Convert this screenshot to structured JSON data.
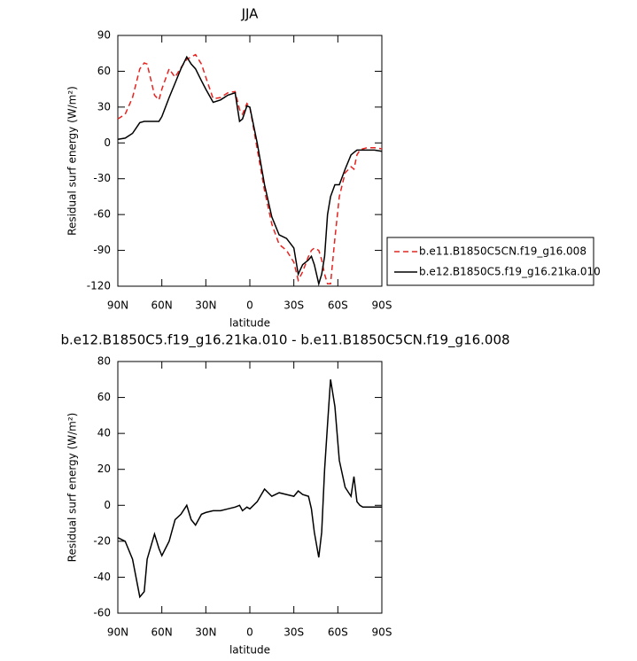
{
  "chart_data": [
    {
      "type": "line",
      "title": "JJA",
      "xlabel": "latitude",
      "ylabel": "Residual surf energy (W/m²)",
      "x": [
        90,
        85,
        80,
        75,
        72,
        70,
        65,
        62,
        60,
        55,
        51,
        47,
        43,
        40,
        37,
        33,
        30,
        25,
        20,
        15,
        10,
        7,
        5,
        2,
        0,
        -5,
        -10,
        -15,
        -20,
        -25,
        -30,
        -33,
        -36,
        -40,
        -42,
        -44,
        -47,
        -49,
        -51,
        -53,
        -55,
        -58,
        -61,
        -65,
        -69,
        -71,
        -73,
        -75,
        -77,
        -80,
        -85,
        -90
      ],
      "series": [
        {
          "name": "b.e11.B1850C5CN.f19_g16.008",
          "color": "#e8231f",
          "dashed": true,
          "values": [
            20,
            24,
            38,
            62,
            67,
            66,
            40,
            36,
            45,
            62,
            55,
            63,
            70,
            72,
            74,
            66,
            55,
            37,
            38,
            42,
            43,
            28,
            24,
            33,
            30,
            -5,
            -40,
            -68,
            -85,
            -90,
            -100,
            -115,
            -108,
            -95,
            -90,
            -88,
            -90,
            -98,
            -110,
            -118,
            -118,
            -80,
            -45,
            -25,
            -20,
            -22,
            -10,
            -6,
            -5,
            -4,
            -4,
            -5
          ]
        },
        {
          "name": "b.e12.B1850C5.f19_g16.21ka.010",
          "color": "#000000",
          "dashed": false,
          "values": [
            3,
            4,
            8,
            17,
            18,
            18,
            18,
            18,
            22,
            38,
            50,
            62,
            72,
            66,
            62,
            52,
            45,
            34,
            36,
            40,
            42,
            18,
            20,
            31,
            30,
            0,
            -35,
            -62,
            -77,
            -80,
            -88,
            -110,
            -102,
            -98,
            -95,
            -102,
            -118,
            -110,
            -95,
            -60,
            -45,
            -35,
            -35,
            -22,
            -10,
            -8,
            -6,
            -6,
            -6,
            -6,
            -6,
            -7
          ]
        }
      ],
      "xlim": [
        90,
        -90
      ],
      "xticks": [
        {
          "value": 90,
          "label": "90N"
        },
        {
          "value": 60,
          "label": "60N"
        },
        {
          "value": 30,
          "label": "30N"
        },
        0,
        {
          "value": -30,
          "label": "30S"
        },
        {
          "value": -60,
          "label": "60S"
        },
        {
          "value": -90,
          "label": "90S"
        }
      ],
      "ylim": [
        -120,
        90
      ],
      "yticks": [
        -120,
        -90,
        -60,
        -30,
        0,
        30,
        60,
        90
      ],
      "legend": "right"
    },
    {
      "type": "line",
      "title": "b.e12.B1850C5.f19_g16.21ka.010 - b.e11.B1850C5CN.f19_g16.008",
      "xlabel": "latitude",
      "ylabel": "Residual surf energy (W/m²)",
      "x": [
        90,
        85,
        80,
        75,
        72,
        70,
        65,
        62,
        60,
        55,
        51,
        47,
        43,
        40,
        37,
        33,
        30,
        25,
        20,
        15,
        10,
        7,
        5,
        2,
        0,
        -5,
        -10,
        -15,
        -20,
        -25,
        -30,
        -33,
        -36,
        -40,
        -42,
        -44,
        -47,
        -49,
        -51,
        -53,
        -55,
        -58,
        -61,
        -65,
        -69,
        -71,
        -73,
        -75,
        -77,
        -80,
        -85,
        -90
      ],
      "values": [
        -18,
        -20,
        -30,
        -51,
        -48,
        -30,
        -16,
        -24,
        -28,
        -20,
        -8,
        -5,
        0,
        -8,
        -11,
        -5,
        -4,
        -3,
        -3,
        -2,
        -1,
        0,
        -3,
        -1,
        -2,
        2,
        9,
        5,
        7,
        6,
        5,
        8,
        6,
        5,
        -2,
        -15,
        -29,
        -15,
        20,
        45,
        70,
        55,
        25,
        10,
        5,
        16,
        2,
        0,
        -1,
        -1,
        -1,
        -1
      ],
      "color": "#000000",
      "xlim": [
        90,
        -90
      ],
      "xticks": [
        {
          "value": 90,
          "label": "90N"
        },
        {
          "value": 60,
          "label": "60N"
        },
        {
          "value": 30,
          "label": "30N"
        },
        0,
        {
          "value": -30,
          "label": "30S"
        },
        {
          "value": -60,
          "label": "60S"
        },
        {
          "value": -90,
          "label": "90S"
        }
      ],
      "ylim": [
        -60,
        80
      ],
      "yticks": [
        -60,
        -40,
        -20,
        0,
        20,
        40,
        60,
        80
      ]
    }
  ]
}
